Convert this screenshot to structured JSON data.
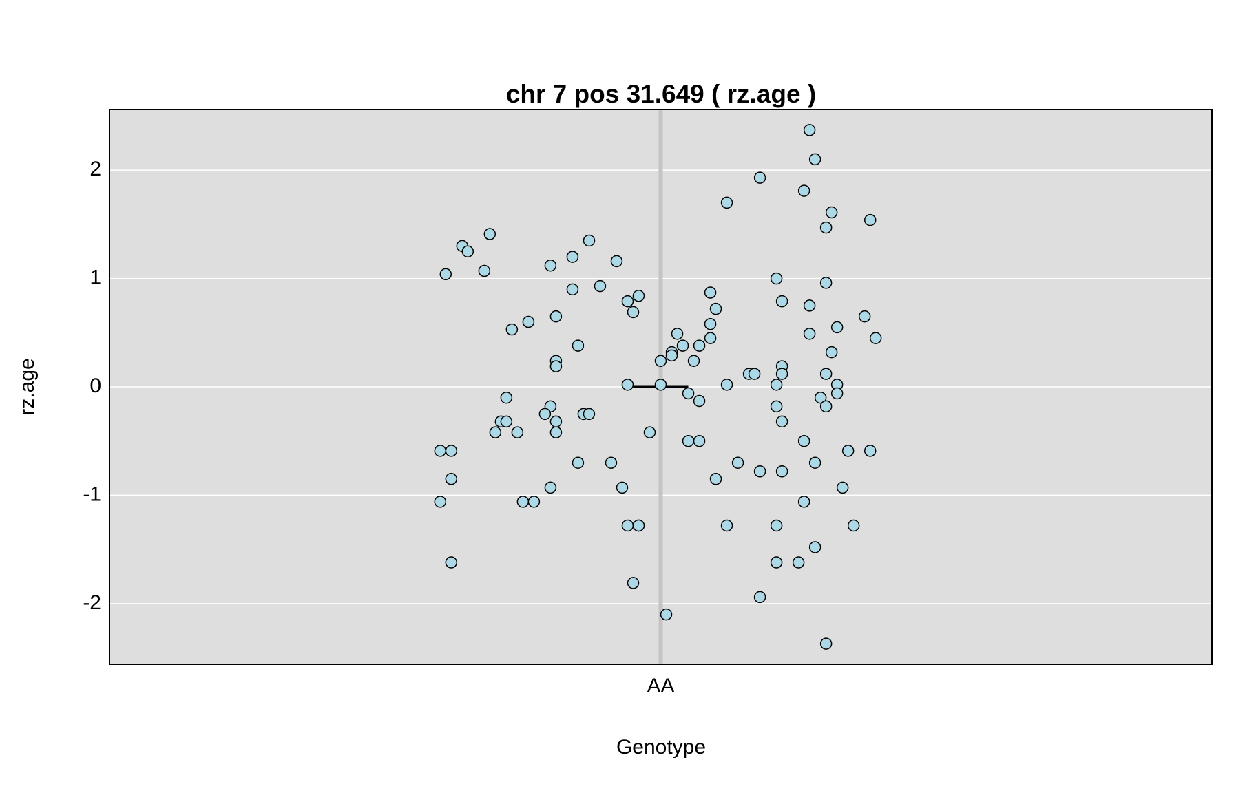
{
  "chart_data": {
    "type": "scatter",
    "title": "chr 7 pos 31.649 ( rz.age )",
    "x_label": "Genotype",
    "y_label": "rz.age",
    "xlim": [
      0,
      2
    ],
    "xticks": [
      {
        "value": 1,
        "label": "AA"
      }
    ],
    "ylim": [
      -2.56,
      2.56
    ],
    "yticks": [
      -2,
      -1,
      0,
      1,
      2
    ],
    "grid": true,
    "color": "#add8e6",
    "median": 0,
    "x": [
      1.27,
      1.28,
      1.18,
      1.26,
      1.12,
      1.31,
      1.38,
      1.3,
      0.69,
      0.64,
      0.65,
      0.87,
      0.84,
      0.92,
      0.8,
      0.68,
      0.61,
      1.21,
      1.3,
      0.89,
      0.84,
      1.09,
      0.96,
      0.94,
      1.22,
      1.27,
      1.1,
      0.95,
      0.81,
      1.37,
      0.76,
      1.09,
      1.32,
      0.73,
      1.27,
      1.03,
      1.09,
      1.39,
      0.85,
      1.04,
      1.07,
      1.02,
      1.31,
      1.02,
      0.81,
      1.0,
      1.06,
      0.81,
      1.22,
      1.16,
      1.17,
      1.22,
      1.3,
      0.94,
      1.0,
      1.12,
      1.21,
      1.32,
      1.05,
      1.32,
      0.72,
      1.29,
      1.07,
      0.8,
      1.21,
      1.3,
      0.79,
      0.86,
      0.87,
      0.71,
      0.72,
      0.81,
      1.22,
      0.7,
      0.74,
      0.81,
      0.98,
      1.05,
      1.07,
      1.26,
      0.6,
      0.62,
      1.34,
      1.38,
      0.85,
      0.91,
      1.14,
      1.28,
      1.18,
      1.22,
      0.62,
      1.1,
      0.8,
      0.93,
      1.33,
      0.6,
      0.75,
      0.77,
      1.26,
      0.94,
      0.96,
      0.96,
      1.12,
      1.21,
      1.35,
      1.28,
      0.62,
      1.21,
      1.25,
      0.95,
      1.18,
      1.01,
      1.3
    ],
    "values": [
      2.37,
      2.1,
      1.93,
      1.81,
      1.7,
      1.61,
      1.54,
      1.47,
      1.41,
      1.3,
      1.25,
      1.35,
      1.2,
      1.16,
      1.12,
      1.07,
      1.04,
      1.0,
      0.96,
      0.93,
      0.9,
      0.87,
      0.84,
      0.79,
      0.79,
      0.75,
      0.72,
      0.69,
      0.65,
      0.65,
      0.6,
      0.58,
      0.55,
      0.53,
      0.49,
      0.49,
      0.45,
      0.45,
      0.38,
      0.38,
      0.38,
      0.32,
      0.32,
      0.29,
      0.24,
      0.24,
      0.24,
      0.19,
      0.19,
      0.12,
      0.12,
      0.12,
      0.12,
      0.02,
      0.02,
      0.02,
      0.02,
      0.02,
      -0.06,
      -0.06,
      -0.1,
      -0.1,
      -0.13,
      -0.18,
      -0.18,
      -0.18,
      -0.25,
      -0.25,
      -0.25,
      -0.32,
      -0.32,
      -0.32,
      -0.32,
      -0.42,
      -0.42,
      -0.42,
      -0.42,
      -0.5,
      -0.5,
      -0.5,
      -0.59,
      -0.59,
      -0.59,
      -0.59,
      -0.7,
      -0.7,
      -0.7,
      -0.7,
      -0.78,
      -0.78,
      -0.85,
      -0.85,
      -0.93,
      -0.93,
      -0.93,
      -1.06,
      -1.06,
      -1.06,
      -1.06,
      -1.28,
      -1.28,
      -1.28,
      -1.28,
      -1.28,
      -1.28,
      -1.48,
      -1.62,
      -1.62,
      -1.62,
      -1.81,
      -1.94,
      -2.1,
      -2.37
    ]
  }
}
